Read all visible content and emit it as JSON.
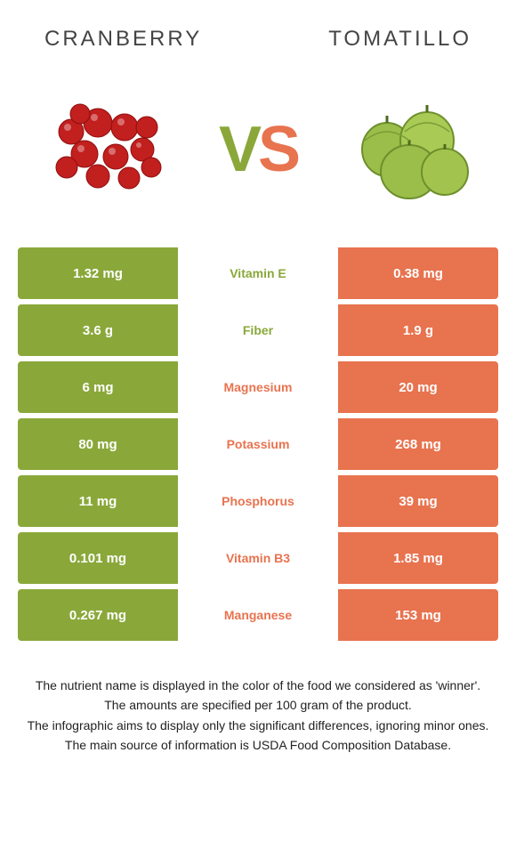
{
  "left": {
    "name": "Cranberry",
    "color": "#8aa83a"
  },
  "right": {
    "name": "Tomatillo",
    "color": "#e8734f"
  },
  "vs": {
    "v": "V",
    "s": "S"
  },
  "rows": [
    {
      "left": "1.32 mg",
      "label": "Vitamin E",
      "right": "0.38 mg",
      "winner": "left"
    },
    {
      "left": "3.6 g",
      "label": "Fiber",
      "right": "1.9 g",
      "winner": "left"
    },
    {
      "left": "6 mg",
      "label": "Magnesium",
      "right": "20 mg",
      "winner": "right"
    },
    {
      "left": "80 mg",
      "label": "Potassium",
      "right": "268 mg",
      "winner": "right"
    },
    {
      "left": "11 mg",
      "label": "Phosphorus",
      "right": "39 mg",
      "winner": "right"
    },
    {
      "left": "0.101 mg",
      "label": "Vitamin B3",
      "right": "1.85 mg",
      "winner": "right"
    },
    {
      "left": "0.267 mg",
      "label": "Manganese",
      "right": "153 mg",
      "winner": "right"
    }
  ],
  "footer": [
    "The nutrient name is displayed in the color of the food we considered as 'winner'.",
    "The amounts are specified per 100 gram of the product.",
    "The infographic aims to display only the significant differences, ignoring minor ones.",
    "The main source of information is USDA Food Composition Database."
  ]
}
